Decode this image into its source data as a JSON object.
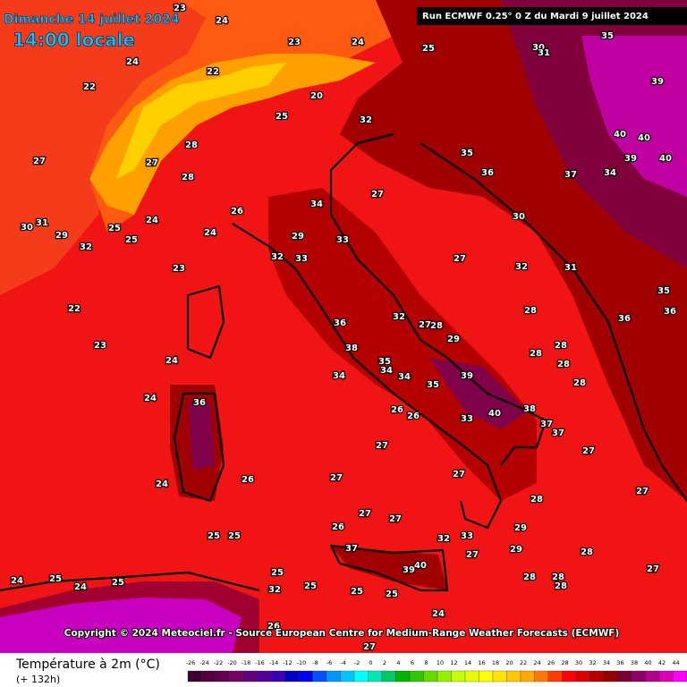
{
  "header": {
    "title": "Dimanche 14 juillet 2024",
    "time": "14:00 locale",
    "run": "Run ECMWF 0.25° 0 Z du Mardi 9 juillet 2024"
  },
  "copyright": "Copyright © 2024 Meteociel.fr - Source European Centre for Medium-Range Weather Forecasts (ECMWF)",
  "footer": {
    "variable": "Température à 2m (°C)",
    "lead": "(+ 132h)"
  },
  "legend": {
    "ticks": [
      -26,
      -24,
      -22,
      -20,
      -18,
      -16,
      -14,
      -12,
      -10,
      -8,
      -6,
      -4,
      -2,
      0,
      2,
      4,
      6,
      8,
      10,
      12,
      14,
      16,
      18,
      20,
      22,
      24,
      26,
      28,
      30,
      32,
      34,
      36,
      38,
      40,
      42,
      44
    ],
    "colors": [
      "#3c0032",
      "#50003c",
      "#640050",
      "#780064",
      "#64007c",
      "#500096",
      "#3c00b4",
      "#0000c8",
      "#0000f0",
      "#0050ff",
      "#0096ff",
      "#00c8ff",
      "#00ffff",
      "#00e6b4",
      "#00c864",
      "#00b400",
      "#32c800",
      "#64dc00",
      "#96f000",
      "#c8ff00",
      "#e6ff00",
      "#ffff00",
      "#ffe600",
      "#ffc800",
      "#ffaa00",
      "#ff7800",
      "#ff3c00",
      "#ff0000",
      "#dc0000",
      "#b40000",
      "#960000",
      "#780032",
      "#8c0064",
      "#b4008c",
      "#dc00b4",
      "#ff00ff"
    ]
  },
  "map": {
    "labels": [
      24,
      23,
      24,
      25,
      22,
      24,
      22,
      20,
      25,
      32,
      28,
      27,
      27,
      28,
      26,
      24,
      23,
      22,
      23,
      24,
      24,
      24,
      26,
      25,
      25,
      24,
      25,
      24,
      25,
      25,
      25,
      25,
      25,
      27,
      27,
      27,
      27,
      26,
      27,
      27,
      29,
      29,
      28,
      28,
      28,
      28,
      28,
      27,
      27,
      27,
      28,
      28,
      28,
      28,
      28,
      27,
      27,
      28,
      29,
      26,
      26,
      34,
      35,
      36,
      37,
      37,
      35,
      36,
      38,
      40,
      39,
      33,
      34,
      33,
      33,
      32,
      29,
      30,
      32,
      31,
      36,
      35,
      36,
      39,
      40,
      40,
      40,
      35,
      30,
      31,
      37,
      34,
      39,
      32,
      31,
      30,
      29,
      24,
      25,
      25,
      34,
      35,
      34,
      36,
      38,
      32,
      27,
      26,
      27,
      24,
      32,
      37,
      40,
      39,
      33,
      32,
      23
    ]
  }
}
